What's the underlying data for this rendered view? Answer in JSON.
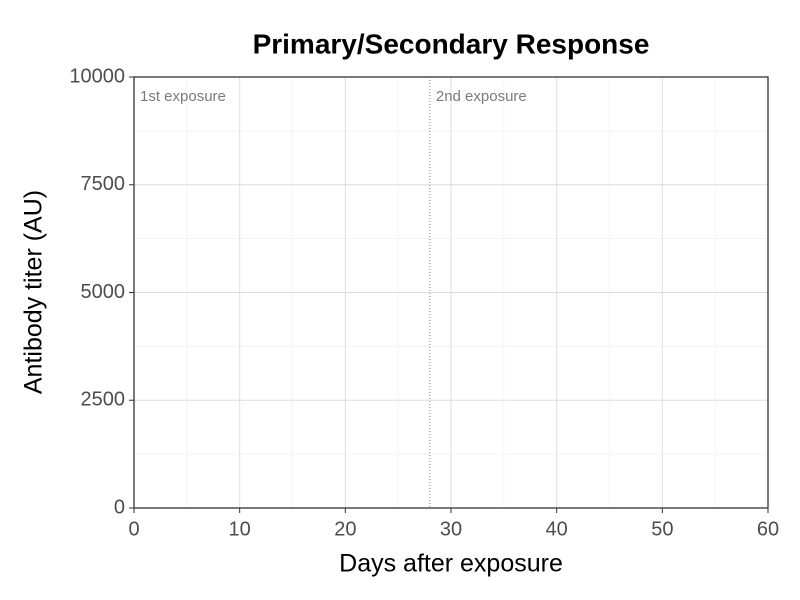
{
  "chart_data": {
    "type": "line",
    "title": "Primary/Secondary Response",
    "x_label": "Days after exposure",
    "y_label": "Antibody titer (AU)",
    "series": [],
    "xlim": [
      0,
      60
    ],
    "xticks": [
      0,
      10,
      20,
      30,
      40,
      50,
      60
    ],
    "xminor": [
      5,
      15,
      25,
      35,
      45,
      55
    ],
    "ylim": [
      0,
      10000
    ],
    "yticks": [
      0,
      2500,
      5000,
      7500,
      10000
    ],
    "yminor": [
      1250,
      3750,
      6250,
      8750
    ],
    "grid": true,
    "vlines": [
      28
    ],
    "annotations": [
      {
        "text": "1st exposure",
        "x": 0
      },
      {
        "text": "2nd exposure",
        "x": 28
      }
    ]
  }
}
